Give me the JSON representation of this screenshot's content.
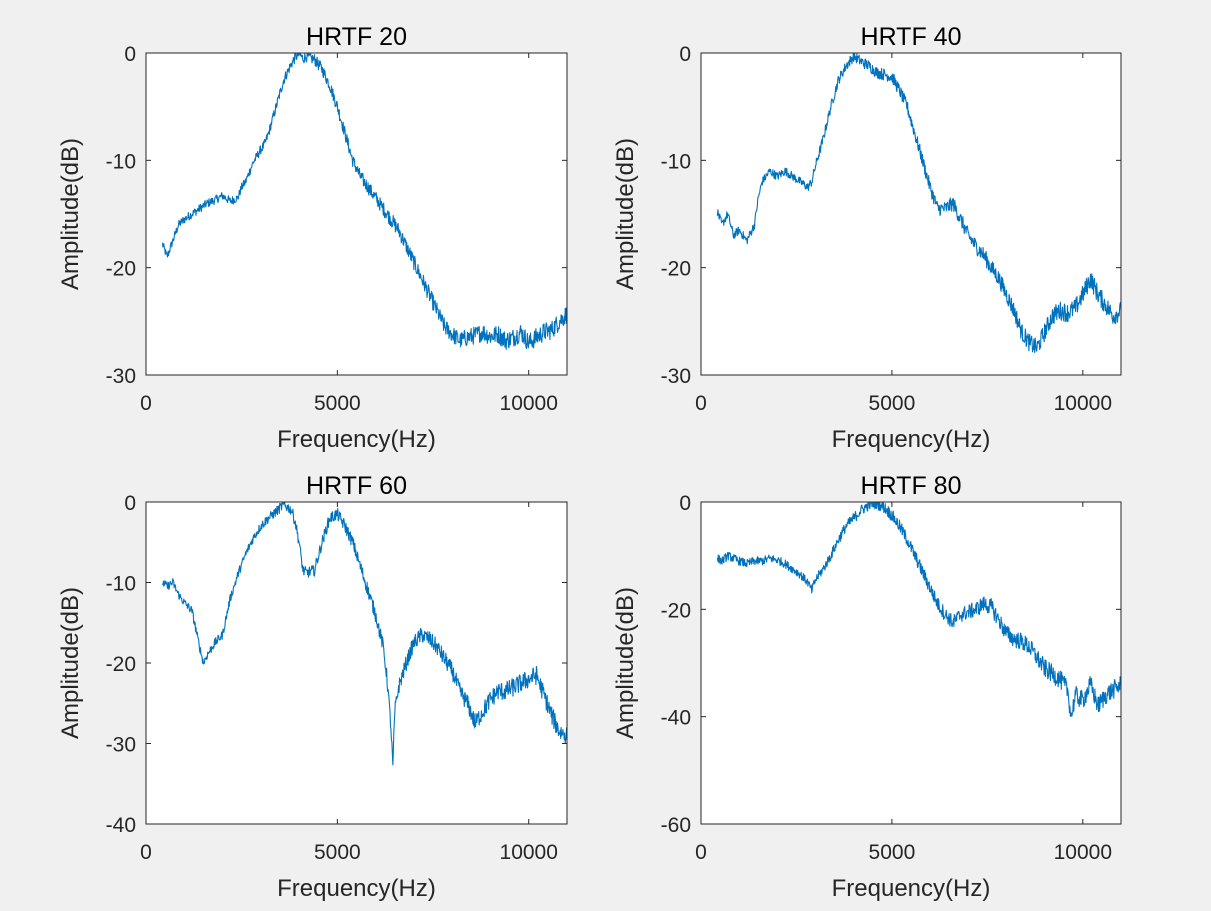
{
  "figure": {
    "background": "#f0f0f0",
    "axes_background": "#ffffff",
    "line_color": "#0072bd"
  },
  "chart_data": [
    {
      "type": "line",
      "title": "HRTF 20",
      "xlabel": "Frequency(Hz)",
      "ylabel": "Amplitude(dB)",
      "xlim": [
        0,
        11000
      ],
      "ylim": [
        -30,
        0
      ],
      "xticks": [
        0,
        5000,
        10000
      ],
      "yticks": [
        -30,
        -20,
        -10,
        0
      ],
      "grid": false,
      "series": [
        {
          "x": [
            430,
            550,
            600,
            700,
            850,
            1000,
            1200,
            1400,
            1600,
            1800,
            2000,
            2200,
            2400,
            2500,
            2600,
            2800,
            3000,
            3100,
            3200,
            3400,
            3600,
            3800,
            3900,
            4000,
            4100,
            4200,
            4300,
            4400,
            4600,
            4800,
            5000,
            5200,
            5400,
            5600,
            5800,
            6000,
            6200,
            6400,
            6600,
            6800,
            7000,
            7200,
            7400,
            7600,
            7800,
            8000,
            8200,
            8400,
            8600,
            8800,
            9000,
            9200,
            9400,
            9600,
            9800,
            10000,
            10200,
            10400,
            10600,
            10800,
            11000
          ],
          "y": [
            -17.8,
            -19.0,
            -18.5,
            -17.5,
            -16.0,
            -15.5,
            -15.0,
            -14.5,
            -14.0,
            -13.7,
            -13.3,
            -13.8,
            -13.5,
            -12.5,
            -12.0,
            -10.2,
            -9.0,
            -8.5,
            -7.5,
            -5.0,
            -2.5,
            -1.0,
            -0.4,
            -0.1,
            -0.5,
            -0.3,
            -0.5,
            -0.6,
            -1.5,
            -3.0,
            -5.0,
            -7.5,
            -10.0,
            -11.5,
            -12.5,
            -13.5,
            -14.5,
            -15.5,
            -16.5,
            -18.0,
            -19.5,
            -21.0,
            -22.5,
            -24.0,
            -25.5,
            -26.2,
            -26.8,
            -26.5,
            -26.3,
            -26.0,
            -26.4,
            -26.2,
            -26.8,
            -26.5,
            -26.0,
            -27.0,
            -26.5,
            -26.0,
            -25.8,
            -25.0,
            -24.3
          ]
        }
      ]
    },
    {
      "type": "line",
      "title": "HRTF 40",
      "xlabel": "Frequency(Hz)",
      "ylabel": "Amplitude(dB)",
      "xlim": [
        0,
        11000
      ],
      "ylim": [
        -30,
        0
      ],
      "xticks": [
        0,
        5000,
        10000
      ],
      "yticks": [
        -30,
        -20,
        -10,
        0
      ],
      "grid": false,
      "series": [
        {
          "x": [
            430,
            550,
            700,
            850,
            1000,
            1200,
            1400,
            1500,
            1600,
            1800,
            2000,
            2200,
            2400,
            2600,
            2800,
            2900,
            3000,
            3200,
            3400,
            3600,
            3800,
            4000,
            4200,
            4400,
            4600,
            4800,
            5000,
            5200,
            5400,
            5600,
            5800,
            6000,
            6200,
            6400,
            6600,
            6800,
            7000,
            7200,
            7400,
            7600,
            7800,
            8000,
            8200,
            8400,
            8600,
            8800,
            9000,
            9200,
            9400,
            9600,
            9800,
            10000,
            10200,
            10400,
            10600,
            10800,
            11000
          ],
          "y": [
            -14.8,
            -16.0,
            -15.0,
            -17.0,
            -16.5,
            -17.5,
            -16.0,
            -13.5,
            -12.0,
            -11.0,
            -11.5,
            -11.0,
            -11.5,
            -12.0,
            -12.5,
            -12.0,
            -10.5,
            -8.0,
            -5.0,
            -2.5,
            -1.2,
            -0.3,
            -0.8,
            -1.2,
            -1.8,
            -2.0,
            -2.2,
            -3.5,
            -5.0,
            -7.5,
            -10.0,
            -12.5,
            -14.5,
            -14.5,
            -14.0,
            -15.5,
            -17.0,
            -18.0,
            -18.8,
            -20.0,
            -21.0,
            -22.5,
            -24.0,
            -26.0,
            -27.0,
            -27.5,
            -26.0,
            -24.5,
            -24.0,
            -24.2,
            -23.8,
            -22.5,
            -21.0,
            -22.5,
            -23.5,
            -24.5,
            -24.0
          ]
        }
      ]
    },
    {
      "type": "line",
      "title": "HRTF 60",
      "xlabel": "Frequency(Hz)",
      "ylabel": "Amplitude(dB)",
      "xlim": [
        0,
        11000
      ],
      "ylim": [
        -40,
        0
      ],
      "xticks": [
        0,
        5000,
        10000
      ],
      "yticks": [
        -40,
        -30,
        -20,
        -10,
        0
      ],
      "grid": false,
      "series": [
        {
          "x": [
            430,
            550,
            700,
            850,
            1000,
            1200,
            1400,
            1500,
            1600,
            1800,
            2000,
            2200,
            2400,
            2600,
            2800,
            3000,
            3200,
            3400,
            3600,
            3800,
            3900,
            4000,
            4100,
            4200,
            4400,
            4600,
            4800,
            5000,
            5200,
            5400,
            5600,
            5800,
            6000,
            6200,
            6300,
            6400,
            6450,
            6500,
            6600,
            6800,
            7000,
            7200,
            7400,
            7600,
            7800,
            8000,
            8200,
            8400,
            8600,
            8800,
            9000,
            9200,
            9400,
            9600,
            9800,
            10000,
            10200,
            10400,
            10600,
            10800,
            11000
          ],
          "y": [
            -10.0,
            -10.5,
            -10.0,
            -11.5,
            -12.5,
            -13.5,
            -18.0,
            -20.0,
            -19.0,
            -17.5,
            -16.5,
            -12.0,
            -9.0,
            -6.5,
            -4.5,
            -3.0,
            -2.0,
            -1.2,
            -0.3,
            -1.0,
            -2.5,
            -5.0,
            -8.5,
            -8.8,
            -8.5,
            -5.0,
            -2.0,
            -1.5,
            -3.0,
            -5.0,
            -8.0,
            -11.0,
            -14.0,
            -18.0,
            -22.0,
            -28.0,
            -33.0,
            -26.0,
            -23.0,
            -20.0,
            -17.5,
            -16.5,
            -17.0,
            -18.0,
            -19.5,
            -21.0,
            -23.5,
            -25.0,
            -27.5,
            -26.0,
            -24.5,
            -23.5,
            -23.5,
            -23.0,
            -22.5,
            -22.0,
            -21.5,
            -24.0,
            -26.5,
            -28.5,
            -29.0
          ]
        }
      ]
    },
    {
      "type": "line",
      "title": "HRTF 80",
      "xlabel": "Frequency(Hz)",
      "ylabel": "Amplitude(dB)",
      "xlim": [
        0,
        11000
      ],
      "ylim": [
        -60,
        0
      ],
      "xticks": [
        0,
        5000,
        10000
      ],
      "yticks": [
        -60,
        -40,
        -20,
        0
      ],
      "grid": false,
      "series": [
        {
          "x": [
            430,
            550,
            700,
            850,
            1000,
            1200,
            1400,
            1600,
            1800,
            2000,
            2200,
            2400,
            2600,
            2800,
            2900,
            3000,
            3200,
            3400,
            3600,
            3800,
            4000,
            4200,
            4400,
            4600,
            4800,
            5000,
            5200,
            5400,
            5600,
            5800,
            6000,
            6200,
            6400,
            6600,
            6800,
            7000,
            7200,
            7400,
            7600,
            7800,
            8000,
            8200,
            8400,
            8600,
            8800,
            9000,
            9200,
            9400,
            9600,
            9700,
            9800,
            10000,
            10200,
            10400,
            10600,
            10800,
            11000
          ],
          "y": [
            -10.5,
            -11.0,
            -10.0,
            -10.5,
            -11.0,
            -11.5,
            -11.0,
            -11.0,
            -10.5,
            -10.8,
            -11.5,
            -12.5,
            -13.5,
            -15.0,
            -16.5,
            -14.5,
            -12.5,
            -10.0,
            -7.0,
            -4.5,
            -3.0,
            -1.5,
            -0.5,
            -0.2,
            -1.0,
            -2.5,
            -4.5,
            -7.0,
            -10.0,
            -13.0,
            -16.0,
            -19.0,
            -21.0,
            -22.5,
            -21.0,
            -20.5,
            -20.0,
            -19.0,
            -19.5,
            -22.0,
            -24.5,
            -25.5,
            -26.0,
            -27.0,
            -29.0,
            -31.0,
            -32.0,
            -33.0,
            -35.0,
            -40.0,
            -36.0,
            -37.0,
            -34.0,
            -38.0,
            -36.0,
            -35.0,
            -34.0
          ]
        }
      ]
    }
  ]
}
